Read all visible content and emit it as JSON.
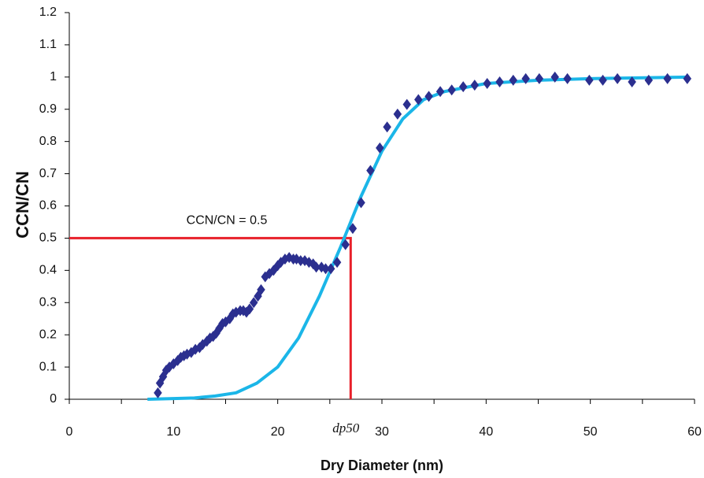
{
  "chart_data": {
    "type": "scatter",
    "x_label": "Dry Diameter (nm)",
    "y_label": "CCN/CN",
    "xlim": [
      0,
      60
    ],
    "xticks": [
      0,
      10,
      20,
      30,
      40,
      50,
      60
    ],
    "xminorticks": [
      5,
      15,
      25,
      35,
      45,
      55
    ],
    "ylim": [
      0,
      1.2
    ],
    "yticks": [
      0,
      0.1,
      0.2,
      0.3,
      0.4,
      0.5,
      0.6,
      0.7,
      0.8,
      0.9,
      1,
      1.1,
      1.2
    ],
    "series": [
      {
        "type": "scatter",
        "color": "#2b2f8f",
        "x": [
          8.5,
          8.7,
          9.0,
          9.3,
          9.6,
          10.0,
          10.4,
          10.7,
          11.0,
          11.3,
          11.7,
          12.1,
          12.5,
          12.8,
          13.2,
          13.5,
          13.8,
          14.1,
          14.4,
          14.7,
          15.0,
          15.4,
          15.7,
          16.0,
          16.4,
          16.7,
          17.0,
          17.3,
          17.7,
          18.1,
          18.4,
          18.8,
          19.2,
          19.6,
          20.0,
          20.3,
          20.7,
          21.1,
          21.5,
          21.8,
          22.2,
          22.6,
          23.0,
          23.4,
          23.7,
          24.2,
          24.6,
          25.1,
          25.7,
          26.5,
          27.2,
          28.0,
          28.9,
          29.8,
          30.5,
          31.5,
          32.4,
          33.5,
          34.5,
          35.6,
          36.7,
          37.8,
          38.9,
          40.1,
          41.3,
          42.6,
          43.8,
          45.1,
          46.6,
          47.8,
          49.9,
          51.2,
          52.6,
          54.0,
          55.6,
          57.4,
          59.3
        ],
        "values": [
          0.02,
          0.05,
          0.07,
          0.09,
          0.1,
          0.11,
          0.12,
          0.13,
          0.135,
          0.14,
          0.145,
          0.155,
          0.16,
          0.17,
          0.18,
          0.19,
          0.195,
          0.205,
          0.22,
          0.235,
          0.24,
          0.25,
          0.265,
          0.27,
          0.275,
          0.275,
          0.27,
          0.28,
          0.3,
          0.32,
          0.34,
          0.38,
          0.39,
          0.4,
          0.415,
          0.425,
          0.435,
          0.44,
          0.435,
          0.435,
          0.43,
          0.43,
          0.425,
          0.42,
          0.41,
          0.41,
          0.405,
          0.405,
          0.425,
          0.48,
          0.53,
          0.61,
          0.71,
          0.78,
          0.845,
          0.885,
          0.915,
          0.93,
          0.94,
          0.955,
          0.96,
          0.97,
          0.975,
          0.98,
          0.985,
          0.99,
          0.995,
          0.995,
          1.0,
          0.995,
          0.99,
          0.99,
          0.995,
          0.985,
          0.99,
          0.995,
          0.995
        ]
      },
      {
        "type": "line",
        "color": "#1bb6e8",
        "x": [
          7.5,
          10,
          12,
          14,
          16,
          18,
          20,
          22,
          24,
          26,
          28,
          30,
          32,
          34,
          36,
          40,
          45,
          50,
          59.5
        ],
        "values": [
          0,
          0.002,
          0.004,
          0.01,
          0.02,
          0.05,
          0.1,
          0.19,
          0.32,
          0.47,
          0.63,
          0.77,
          0.87,
          0.93,
          0.955,
          0.98,
          0.99,
          0.995,
          1.0
        ]
      }
    ],
    "reference": {
      "x": 27,
      "y": 0.5,
      "color": "#e8202a",
      "x_label": "dp50",
      "y_label": "CCN/CN = 0.5"
    }
  }
}
